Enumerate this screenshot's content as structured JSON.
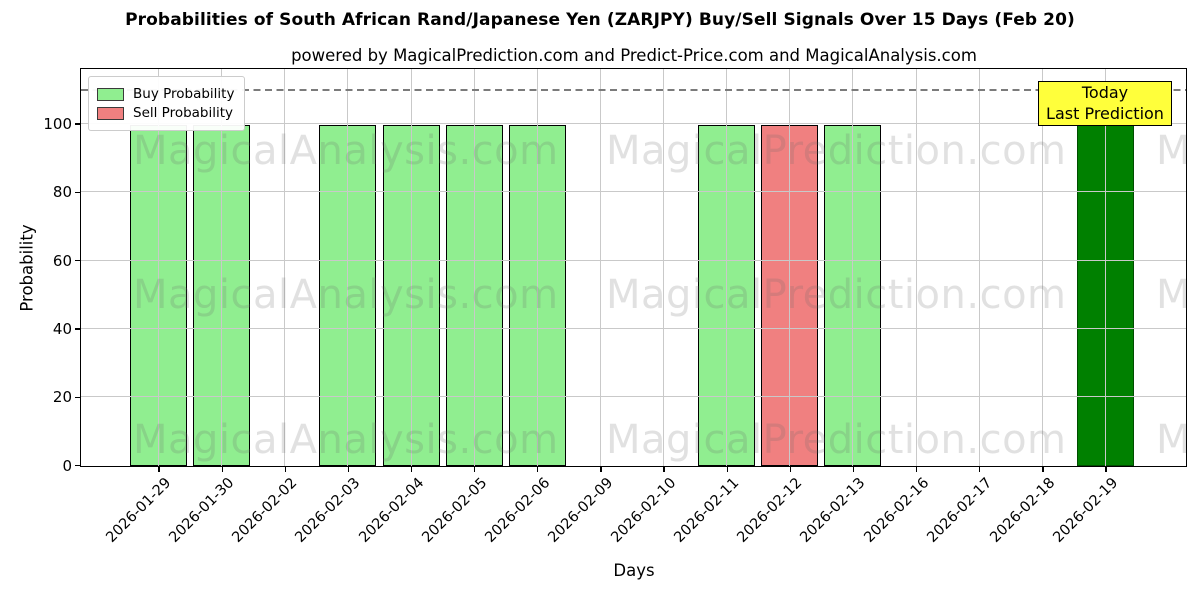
{
  "figure": {
    "title": "Probabilities of South African Rand/Japanese Yen (ZARJPY) Buy/Sell Signals Over 15 Days (Feb 20)",
    "subtitle": "powered by MagicalPrediction.com and Predict-Price.com and MagicalAnalysis.com"
  },
  "chart_data": {
    "type": "bar",
    "title": "Probabilities of South African Rand/Japanese Yen (ZARJPY) Buy/Sell Signals Over 15 Days (Feb 20)",
    "xlabel": "Days",
    "ylabel": "Probability",
    "ylim": [
      0,
      116
    ],
    "yticks": [
      0,
      20,
      40,
      60,
      80,
      100
    ],
    "grid": true,
    "dashed_threshold_y": 110,
    "categories": [
      "2026-01-29",
      "2026-01-30",
      "2026-02-02",
      "2026-02-03",
      "2026-02-04",
      "2026-02-05",
      "2026-02-06",
      "2026-02-09",
      "2026-02-10",
      "2026-02-11",
      "2026-02-12",
      "2026-02-13",
      "2026-02-16",
      "2026-02-17",
      "2026-02-18",
      "2026-02-19"
    ],
    "series": [
      {
        "key": "buy",
        "name": "Buy Probability",
        "color": "#90EE90",
        "edge": "#000000",
        "values": [
          100,
          100,
          0,
          100,
          100,
          100,
          100,
          0,
          0,
          100,
          0,
          100,
          0,
          0,
          0,
          0
        ]
      },
      {
        "key": "sell",
        "name": "Sell Probability",
        "color": "#F08080",
        "edge": "#000000",
        "values": [
          0,
          0,
          0,
          0,
          0,
          0,
          0,
          0,
          0,
          0,
          100,
          0,
          0,
          0,
          0,
          0
        ]
      },
      {
        "key": "today",
        "name": "Today Last Prediction",
        "color": "#008000",
        "edge": "#004d00",
        "values": [
          0,
          0,
          0,
          0,
          0,
          0,
          0,
          0,
          0,
          0,
          0,
          0,
          0,
          0,
          0,
          100
        ]
      }
    ],
    "legend": {
      "position": "upper left",
      "entries": [
        {
          "label": "Buy Probability",
          "color": "#90EE90"
        },
        {
          "label": "Sell Probability",
          "color": "#F08080"
        }
      ]
    },
    "annotation": {
      "lines": [
        "Today",
        "Last Prediction"
      ],
      "bg": "#ffff3b",
      "border": "#000000"
    },
    "watermarks": [
      "MagicalAnalysis.com",
      "MagicalPrediction.com"
    ]
  }
}
